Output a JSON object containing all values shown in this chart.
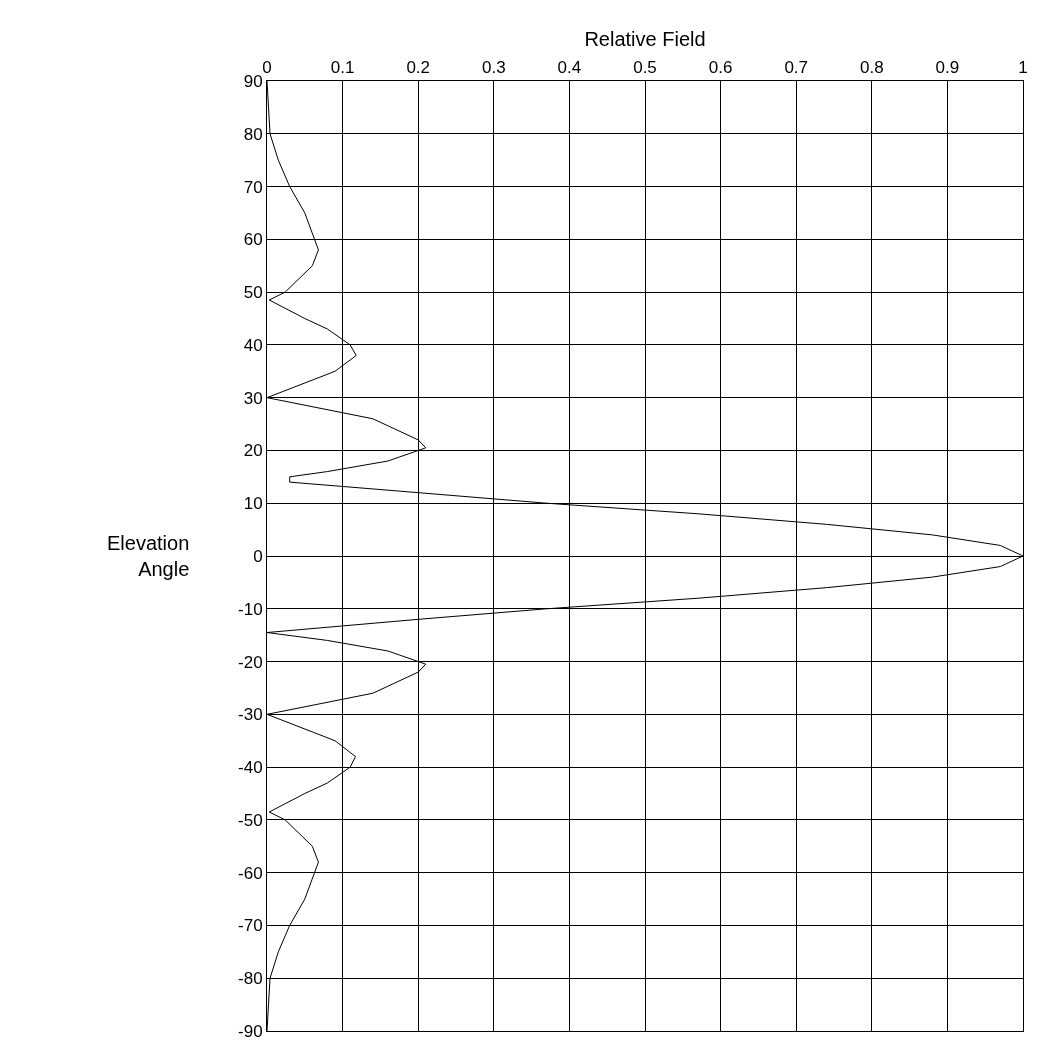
{
  "chart_data": {
    "type": "line",
    "xlabel": "Relative Field",
    "ylabel": "Elevation Angle",
    "x": [
      0,
      0.004,
      0.015,
      0.03,
      0.05,
      0.068,
      0.06,
      0.024,
      0.003,
      0.05,
      0.08,
      0.11,
      0.118,
      0.09,
      0,
      0.14,
      0.2,
      0.21,
      0.16,
      0.08,
      0.03,
      0.03,
      0.2,
      0.37,
      0.57,
      0.74,
      0.88,
      0.97,
      1,
      0.97,
      0.88,
      0.74,
      0.57,
      0.37,
      0.2,
      0,
      0.08,
      0.16,
      0.21,
      0.2,
      0.14,
      0,
      0.09,
      0.117,
      0.11,
      0.08,
      0.05,
      0.003,
      0.024,
      0.06,
      0.068,
      0.05,
      0.03,
      0.015,
      0.004,
      0
    ],
    "values": [
      90,
      80,
      75,
      70,
      65,
      58,
      55,
      50,
      48.5,
      45,
      43,
      40,
      38,
      35,
      30,
      26,
      22,
      20.5,
      18,
      16,
      15,
      14,
      12,
      10,
      8,
      6,
      4,
      2,
      0,
      -2,
      -4,
      -6,
      -8,
      -10,
      -12,
      -14.5,
      -16,
      -18,
      -20.5,
      -22,
      -26,
      -30,
      -35,
      -38,
      -40,
      -43,
      -45,
      -48.5,
      -50,
      -55,
      -58,
      -65,
      -70,
      -75,
      -80,
      -90
    ],
    "color": "#000000",
    "marker": "none",
    "line_style": "solid",
    "grid": true,
    "legend": false,
    "xlim": [
      0,
      1
    ],
    "xticks": [
      0,
      0.1,
      0.2,
      0.3,
      0.4,
      0.5,
      0.6,
      0.7,
      0.8,
      0.9,
      1
    ],
    "ylim": [
      -90,
      90
    ],
    "yticks": [
      -90,
      -80,
      -70,
      -60,
      -50,
      -40,
      -30,
      -20,
      -10,
      0,
      10,
      20,
      30,
      40,
      50,
      60,
      70,
      80,
      90
    ]
  }
}
